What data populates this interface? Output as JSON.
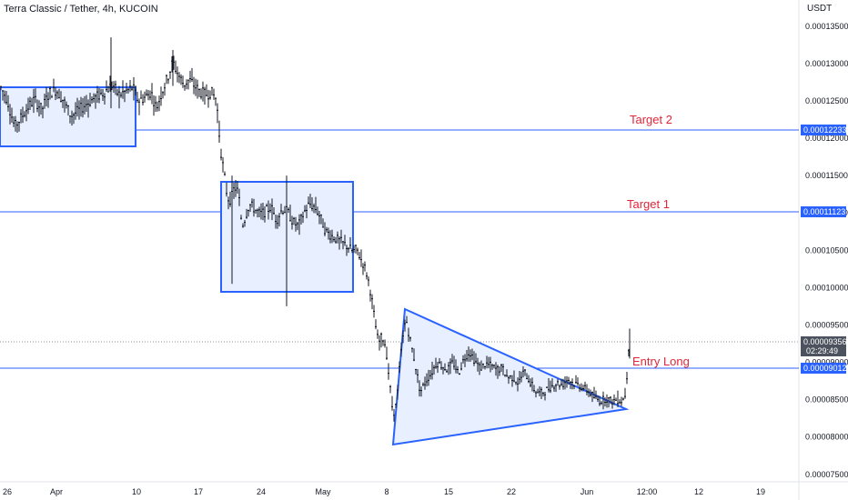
{
  "header": {
    "title": "Terra Classic / Tether, 4h, KUCOIN",
    "currency": "USDT"
  },
  "colors": {
    "accent": "#2962ff",
    "candle": "#131722",
    "label": "#e0273a",
    "box_fill": "#e8efff",
    "tag_dark": "#4c525e"
  },
  "chart_data": {
    "type": "candlestick",
    "title": "Terra Classic / Tether, 4h, KUCOIN",
    "ylim": [
      7.4e-05,
      0.0001385
    ],
    "y_ticks": [
      "0.00013500",
      "0.00013000",
      "0.00012500",
      "0.00012000",
      "0.00011500",
      "0.00011000",
      "0.00010500",
      "0.00010000",
      "0.00009500",
      "0.00009000",
      "0.00008500",
      "0.00008000",
      "0.00007500"
    ],
    "x_ticks": [
      "26",
      "Apr",
      "10",
      "17",
      "24",
      "May",
      "8",
      "15",
      "22",
      "Jun",
      "12:00",
      "12",
      "19"
    ],
    "last_price": "0.00009356",
    "countdown": "02:29:49",
    "levels": [
      {
        "name": "Target 2",
        "value": "0.00012233"
      },
      {
        "name": "Target 1",
        "value": "0.00011123"
      },
      {
        "name": "Entry Long",
        "value": "0.00009012"
      }
    ],
    "price_path": [
      [
        0,
        0.000127
      ],
      [
        8,
        0.0001252
      ],
      [
        16,
        0.0001215
      ],
      [
        22,
        0.0001225
      ],
      [
        30,
        0.000124
      ],
      [
        38,
        0.0001252
      ],
      [
        46,
        0.0001238
      ],
      [
        54,
        0.000126
      ],
      [
        62,
        0.0001265
      ],
      [
        70,
        0.000125
      ],
      [
        78,
        0.000123
      ],
      [
        86,
        0.0001236
      ],
      [
        94,
        0.0001245
      ],
      [
        102,
        0.0001252
      ],
      [
        110,
        0.0001258
      ],
      [
        118,
        0.0001265
      ],
      [
        124,
        0.0001272
      ],
      [
        130,
        0.0001258
      ],
      [
        138,
        0.0001262
      ],
      [
        146,
        0.0001268
      ],
      [
        152,
        0.000125
      ],
      [
        160,
        0.0001255
      ],
      [
        166,
        0.0001262
      ],
      [
        172,
        0.000124
      ],
      [
        178,
        0.0001262
      ],
      [
        184,
        0.000128
      ],
      [
        190,
        0.0001302
      ],
      [
        196,
        0.0001285
      ],
      [
        202,
        0.0001272
      ],
      [
        208,
        0.0001278
      ],
      [
        214,
        0.000127
      ],
      [
        220,
        0.0001262
      ],
      [
        226,
        0.0001258
      ],
      [
        232,
        0.0001262
      ],
      [
        238,
        0.0001252
      ],
      [
        242,
        0.000119
      ],
      [
        246,
        0.0001155
      ],
      [
        250,
        0.000112
      ],
      [
        254,
        0.0001118
      ],
      [
        258,
        0.0001135
      ],
      [
        262,
        0.0001128
      ],
      [
        266,
        0.0001082
      ],
      [
        270,
        0.0001095
      ],
      [
        274,
        0.0001112
      ],
      [
        280,
        0.0001105
      ],
      [
        286,
        0.0001098
      ],
      [
        292,
        0.0001102
      ],
      [
        298,
        0.0001108
      ],
      [
        304,
        0.000109
      ],
      [
        310,
        0.0001105
      ],
      [
        316,
        0.0001102
      ],
      [
        322,
        0.0001088
      ],
      [
        328,
        0.0001082
      ],
      [
        334,
        0.00011
      ],
      [
        340,
        0.0001112
      ],
      [
        346,
        0.0001108
      ],
      [
        352,
        0.0001095
      ],
      [
        358,
        0.0001075
      ],
      [
        364,
        0.000107
      ],
      [
        370,
        0.0001065
      ],
      [
        376,
        0.000106
      ],
      [
        382,
        0.0001055
      ],
      [
        388,
        0.0001048
      ],
      [
        392,
        0.0001052
      ],
      [
        396,
        0.000104
      ],
      [
        400,
        0.000103
      ],
      [
        404,
        0.0001015
      ],
      [
        408,
        9.9e-05
      ],
      [
        412,
        9.55e-05
      ],
      [
        416,
        9.25e-05
      ],
      [
        420,
        9.35e-05
      ],
      [
        424,
        9.22e-05
      ],
      [
        428,
        8.75e-05
      ],
      [
        432,
        8.3e-05
      ],
      [
        436,
        8.45e-05
      ],
      [
        440,
        9.05e-05
      ],
      [
        446,
        9.6e-05
      ],
      [
        450,
        9.35e-05
      ],
      [
        456,
        9e-05
      ],
      [
        462,
        8.6e-05
      ],
      [
        468,
        8.75e-05
      ],
      [
        474,
        8.85e-05
      ],
      [
        480,
        9e-05
      ],
      [
        486,
        8.95e-05
      ],
      [
        492,
        8.9e-05
      ],
      [
        498,
        9e-05
      ],
      [
        504,
        8.85e-05
      ],
      [
        510,
        9.05e-05
      ],
      [
        516,
        9.15e-05
      ],
      [
        522,
        9.02e-05
      ],
      [
        528,
        8.92e-05
      ],
      [
        534,
        8.98e-05
      ],
      [
        540,
        8.95e-05
      ],
      [
        546,
        8.9e-05
      ],
      [
        552,
        8.92e-05
      ],
      [
        558,
        8.8e-05
      ],
      [
        564,
        8.8e-05
      ],
      [
        570,
        8.72e-05
      ],
      [
        576,
        8.88e-05
      ],
      [
        582,
        8.75e-05
      ],
      [
        588,
        8.62e-05
      ],
      [
        594,
        8.58e-05
      ],
      [
        600,
        8.62e-05
      ],
      [
        606,
        8.68e-05
      ],
      [
        612,
        8.72e-05
      ],
      [
        618,
        8.7e-05
      ],
      [
        624,
        8.78e-05
      ],
      [
        630,
        8.72e-05
      ],
      [
        636,
        8.7e-05
      ],
      [
        642,
        8.65e-05
      ],
      [
        648,
        8.6e-05
      ],
      [
        654,
        8.52e-05
      ],
      [
        660,
        8.48e-05
      ],
      [
        666,
        8.52e-05
      ],
      [
        672,
        8.48e-05
      ],
      [
        678,
        8.5e-05
      ],
      [
        684,
        8.48e-05
      ],
      [
        688,
        8.6e-05
      ],
      [
        690,
        9.05e-05
      ],
      [
        692,
        9.35e-05
      ]
    ]
  }
}
